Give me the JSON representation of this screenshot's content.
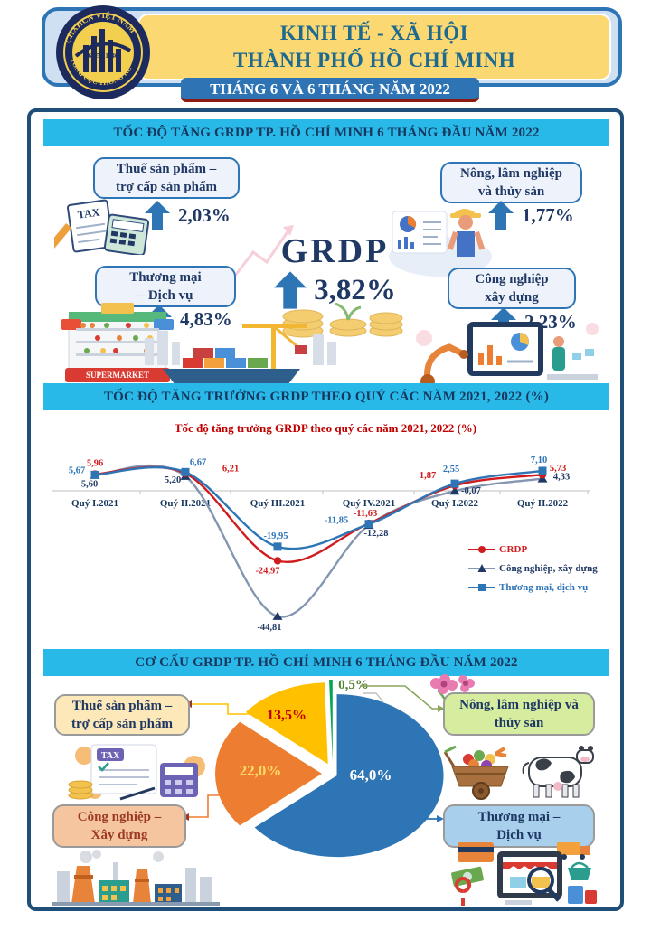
{
  "header": {
    "title_line1": "KINH TẾ - XÃ HỘI",
    "title_line2": "THÀNH PHỐ HỒ CHÍ MINH",
    "subtitle": "THÁNG 6 VÀ 6 THÁNG NĂM 2022",
    "logo": {
      "arc_top": "CHXHCN VIỆT NAM",
      "arc_bottom": "TỔNG CỤC THỐNG KÊ",
      "center_date": "6 - 5 - 1946"
    }
  },
  "section1": {
    "title": "TỐC ĐỘ TĂNG GRDP TP. HỒ CHÍ MINH 6 THÁNG ĐẦU NĂM 2022",
    "center": {
      "label": "GRDP",
      "value": "3,82%"
    },
    "items": [
      {
        "id": "thue-san-pham",
        "label_line1": "Thuế sản phẩm –",
        "label_line2": "trợ cấp sản phẩm",
        "value": "2,03%"
      },
      {
        "id": "nong-lam-thuy-san",
        "label_line1": "Nông, lâm nghiệp",
        "label_line2": "và thủy sản",
        "value": "1,77%"
      },
      {
        "id": "thuong-mai-dich-vu",
        "label_line1": "Thương mại",
        "label_line2": "– Dịch vụ",
        "value": "4,83%"
      },
      {
        "id": "cong-nghiep-xay-dung",
        "label_line1": "Công nghiệp",
        "label_line2": "xây dựng",
        "value": "2,23%"
      }
    ],
    "illustrations": {
      "tax_doc": "TAX",
      "supermarket_sign": "SUPERMARKET"
    }
  },
  "section2": {
    "title": "TỐC ĐỘ TĂNG TRƯỞNG GRDP THEO QUÝ CÁC NĂM 2021, 2022 (%)"
  },
  "section3": {
    "title": "CƠ CẤU GRDP TP. HỒ CHÍ MINH 6 THÁNG ĐẦU NĂM 2022",
    "boxes": [
      {
        "line1": "Thuế sản phẩm –",
        "line2": "trợ cấp sản phẩm"
      },
      {
        "line1": "Nông, lâm nghiệp và",
        "line2": "thủy sản"
      },
      {
        "line1": "Công nghiệp –",
        "line2": "Xây dựng"
      },
      {
        "line1": "Thương mại –",
        "line2": "Dịch vụ"
      }
    ],
    "illustrations": {
      "tax_doc": "TAX"
    }
  },
  "chart_data": [
    {
      "type": "line",
      "title": "Tốc độ tăng trưởng GRDP theo quý các năm 2021, 2022 (%)",
      "categories": [
        "Quý I.2021",
        "Quý II.2021",
        "Quý III.2021",
        "Quý IV.2021",
        "Quý I.2022",
        "Quý II.2022"
      ],
      "series": [
        {
          "name": "GRDP",
          "marker": "circle",
          "color": "#d01c1f",
          "line_color": "#d01c1f",
          "values": [
            5.96,
            6.21,
            -24.97,
            -11.63,
            1.87,
            5.73
          ]
        },
        {
          "name": "Công nghiệp, xây dựng",
          "marker": "triangle",
          "color": "#1f3864",
          "line_color": "#8496b0",
          "values": [
            5.6,
            5.2,
            -44.81,
            -12.28,
            -0.07,
            4.33
          ]
        },
        {
          "name": "Thương mại, dịch vụ",
          "marker": "square",
          "color": "#2e75b6",
          "line_color": "#2e75b6",
          "values": [
            5.67,
            6.67,
            -19.95,
            -11.85,
            2.55,
            7.1
          ]
        }
      ],
      "ylim": [
        -50,
        10
      ],
      "grid": false,
      "legend_position": "right-inside",
      "decimal_separator": ","
    },
    {
      "type": "pie",
      "title": "CƠ CẤU GRDP TP. HỒ CHÍ MINH 6 THÁNG ĐẦU NĂM 2022",
      "labels": [
        "Thương mại – Dịch vụ",
        "Công nghiệp – Xây dựng",
        "Thuế sản phẩm – trợ cấp sản phẩm",
        "Nông, lâm nghiệp và thủy sản"
      ],
      "values": [
        64.0,
        22.0,
        13.5,
        0.5
      ],
      "display_values": [
        "64,0%",
        "22,0%",
        "13,5%",
        "0,5%"
      ],
      "colors": [
        "#2e75b6",
        "#ed7d31",
        "#ffc000",
        "#00a650"
      ],
      "label_text_colors": [
        "#ffffff",
        "#ffd966",
        "#c00000",
        "#538135"
      ]
    }
  ],
  "colors": {
    "section_bar_bg": "#29b9e9",
    "section_bar_text": "#17375e",
    "accent_navy": "#1f3864",
    "header_yellow": "#fcd873",
    "header_blue_border": "#2e75b6",
    "subtitle_bar": "#2e74b5",
    "subtitle_underline": "#8c1c12",
    "chart_title_red": "#c00000"
  }
}
